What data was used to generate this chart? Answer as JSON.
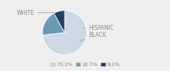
{
  "labels": [
    "WHITE",
    "HISPANIC",
    "BLACK"
  ],
  "values": [
    73.3,
    18.7,
    8.0
  ],
  "colors": [
    "#cdd9e3",
    "#6b9ab8",
    "#1f4060"
  ],
  "legend_labels": [
    "73.3%",
    "18.7%",
    "8.0%"
  ],
  "startangle": 90,
  "background_color": "#efefef",
  "font_color": "#888888",
  "font_size": 5.5,
  "legend_font_size": 5.0
}
